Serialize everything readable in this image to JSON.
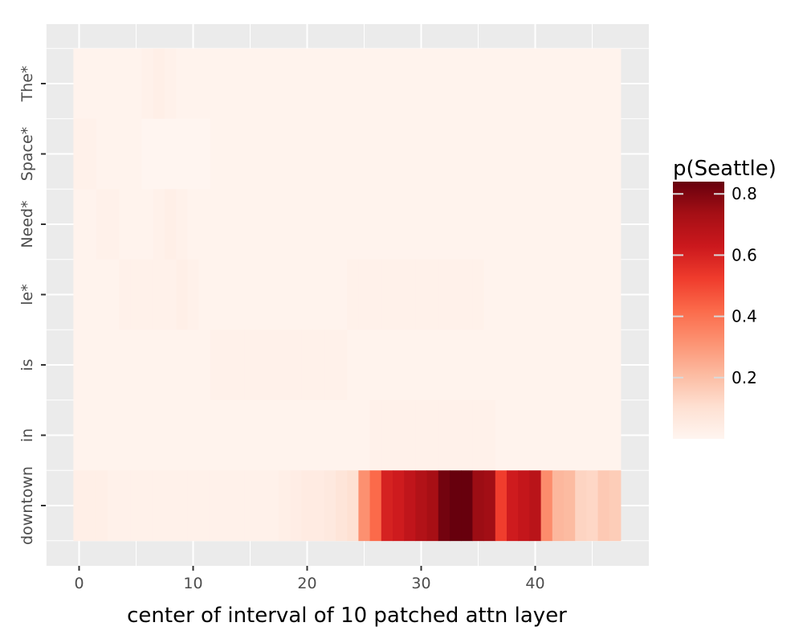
{
  "chart_data": {
    "type": "heatmap",
    "xlabel": "center of interval of 10 patched attn layer",
    "ylabel": "",
    "x_ticks": [
      0,
      10,
      20,
      30,
      40
    ],
    "x_tick_labels": [
      "0",
      "10",
      "20",
      "30",
      "40"
    ],
    "xlim": [
      -3,
      50
    ],
    "x_range": [
      0,
      47
    ],
    "rows": [
      "The*",
      "Space*",
      "Need*",
      "le*",
      "is",
      "in",
      "downtown"
    ],
    "grid": true,
    "colorbar": {
      "title": "p(Seattle)",
      "ticks": [
        0.2,
        0.4,
        0.6,
        0.8
      ],
      "tick_labels": [
        "0.2",
        "0.4",
        "0.6",
        "0.8"
      ],
      "range": [
        0,
        0.84
      ],
      "colors": [
        "#fff5f0",
        "#fee0d2",
        "#fcbba1",
        "#fc9272",
        "#fb6a4a",
        "#ef3b2c",
        "#cb181d",
        "#a50f15",
        "#67000d"
      ],
      "placement": "right"
    },
    "values": [
      [
        0.01,
        0.01,
        0.01,
        0.01,
        0.01,
        0.01,
        0.02,
        0.03,
        0.02,
        0.01,
        0.01,
        0.01,
        0.01,
        0.01,
        0.01,
        0.01,
        0.01,
        0.01,
        0.01,
        0.01,
        0.01,
        0.01,
        0.01,
        0.01,
        0.01,
        0.01,
        0.01,
        0.01,
        0.01,
        0.01,
        0.01,
        0.01,
        0.01,
        0.01,
        0.01,
        0.01,
        0.01,
        0.01,
        0.01,
        0.01,
        0.01,
        0.01,
        0.01,
        0.01,
        0.01,
        0.01,
        0.01,
        0.01
      ],
      [
        0.02,
        0.02,
        0.01,
        0.01,
        0.01,
        0.01,
        0.0,
        0.0,
        0.0,
        0.0,
        0.0,
        0.0,
        0.01,
        0.01,
        0.01,
        0.01,
        0.01,
        0.01,
        0.01,
        0.01,
        0.01,
        0.01,
        0.01,
        0.01,
        0.01,
        0.01,
        0.01,
        0.01,
        0.01,
        0.01,
        0.01,
        0.01,
        0.01,
        0.01,
        0.01,
        0.01,
        0.01,
        0.01,
        0.01,
        0.01,
        0.01,
        0.01,
        0.01,
        0.01,
        0.01,
        0.01,
        0.01,
        0.01
      ],
      [
        0.01,
        0.01,
        0.02,
        0.02,
        0.01,
        0.01,
        0.01,
        0.02,
        0.03,
        0.02,
        0.01,
        0.01,
        0.01,
        0.01,
        0.01,
        0.01,
        0.01,
        0.01,
        0.01,
        0.01,
        0.01,
        0.01,
        0.01,
        0.01,
        0.01,
        0.01,
        0.01,
        0.01,
        0.01,
        0.01,
        0.01,
        0.01,
        0.01,
        0.01,
        0.01,
        0.01,
        0.01,
        0.01,
        0.01,
        0.01,
        0.01,
        0.01,
        0.01,
        0.01,
        0.01,
        0.01,
        0.01,
        0.01
      ],
      [
        0.01,
        0.01,
        0.01,
        0.01,
        0.02,
        0.02,
        0.02,
        0.02,
        0.02,
        0.03,
        0.02,
        0.01,
        0.01,
        0.01,
        0.01,
        0.01,
        0.01,
        0.01,
        0.01,
        0.01,
        0.01,
        0.01,
        0.01,
        0.01,
        0.02,
        0.02,
        0.02,
        0.02,
        0.02,
        0.02,
        0.02,
        0.02,
        0.02,
        0.02,
        0.02,
        0.02,
        0.01,
        0.01,
        0.01,
        0.01,
        0.01,
        0.01,
        0.01,
        0.01,
        0.01,
        0.01,
        0.01,
        0.01
      ],
      [
        0.01,
        0.01,
        0.01,
        0.01,
        0.01,
        0.01,
        0.01,
        0.01,
        0.01,
        0.01,
        0.01,
        0.01,
        0.02,
        0.02,
        0.02,
        0.02,
        0.02,
        0.02,
        0.02,
        0.02,
        0.02,
        0.02,
        0.02,
        0.02,
        0.01,
        0.01,
        0.01,
        0.01,
        0.01,
        0.01,
        0.01,
        0.01,
        0.01,
        0.01,
        0.01,
        0.01,
        0.01,
        0.01,
        0.01,
        0.01,
        0.01,
        0.01,
        0.01,
        0.01,
        0.01,
        0.01,
        0.01,
        0.01
      ],
      [
        0.01,
        0.01,
        0.01,
        0.01,
        0.01,
        0.01,
        0.01,
        0.01,
        0.01,
        0.01,
        0.01,
        0.01,
        0.01,
        0.01,
        0.01,
        0.01,
        0.01,
        0.01,
        0.01,
        0.01,
        0.01,
        0.01,
        0.01,
        0.01,
        0.01,
        0.01,
        0.02,
        0.02,
        0.02,
        0.02,
        0.02,
        0.02,
        0.02,
        0.02,
        0.02,
        0.02,
        0.02,
        0.01,
        0.01,
        0.01,
        0.01,
        0.01,
        0.01,
        0.01,
        0.01,
        0.01,
        0.01,
        0.01
      ],
      [
        0.03,
        0.03,
        0.03,
        0.02,
        0.02,
        0.02,
        0.02,
        0.02,
        0.02,
        0.02,
        0.02,
        0.02,
        0.02,
        0.02,
        0.02,
        0.02,
        0.02,
        0.02,
        0.03,
        0.04,
        0.05,
        0.05,
        0.06,
        0.08,
        0.1,
        0.32,
        0.42,
        0.6,
        0.62,
        0.66,
        0.7,
        0.73,
        0.82,
        0.84,
        0.84,
        0.75,
        0.74,
        0.52,
        0.62,
        0.65,
        0.68,
        0.33,
        0.22,
        0.21,
        0.14,
        0.13,
        0.17,
        0.16
      ]
    ]
  }
}
